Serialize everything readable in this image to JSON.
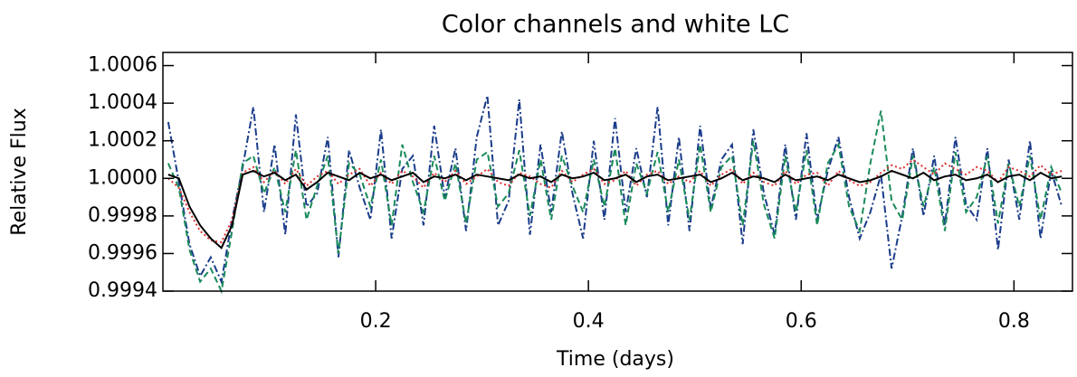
{
  "chart_data": {
    "type": "line",
    "title": "Color channels and white LC",
    "x_label": "Time (days)",
    "y_label": "Relative Flux",
    "xlim": [
      0,
      0.855
    ],
    "ylim": [
      0.9994,
      1.00067
    ],
    "xticks": [
      0.2,
      0.4,
      0.6,
      0.8
    ],
    "yticks": [
      0.9994,
      0.9996,
      0.9998,
      {
        "value": 1.0,
        "label": "1.0000"
      },
      1.0002,
      1.0004,
      1.0006
    ],
    "x": [
      0.005,
      0.015,
      0.025,
      0.035,
      0.045,
      0.055,
      0.065,
      0.075,
      0.085,
      0.095,
      0.105,
      0.115,
      0.125,
      0.135,
      0.145,
      0.155,
      0.165,
      0.175,
      0.185,
      0.195,
      0.205,
      0.215,
      0.225,
      0.235,
      0.245,
      0.255,
      0.265,
      0.275,
      0.285,
      0.295,
      0.305,
      0.315,
      0.325,
      0.335,
      0.345,
      0.355,
      0.365,
      0.375,
      0.385,
      0.395,
      0.405,
      0.415,
      0.425,
      0.435,
      0.445,
      0.455,
      0.465,
      0.475,
      0.485,
      0.495,
      0.505,
      0.515,
      0.525,
      0.535,
      0.545,
      0.555,
      0.565,
      0.575,
      0.585,
      0.595,
      0.605,
      0.615,
      0.625,
      0.635,
      0.645,
      0.655,
      0.665,
      0.675,
      0.685,
      0.695,
      0.705,
      0.715,
      0.725,
      0.735,
      0.745,
      0.755,
      0.765,
      0.775,
      0.785,
      0.795,
      0.805,
      0.815,
      0.825,
      0.835,
      0.845
    ],
    "series": [
      {
        "color": "#1a3c8a",
        "style": "dashdot",
        "values": [
          1.0003,
          0.99998,
          0.99965,
          0.99948,
          0.99958,
          0.99945,
          0.99978,
          1.00006,
          1.00038,
          0.99982,
          1.00018,
          0.9997,
          1.00034,
          0.99985,
          0.99992,
          1.00022,
          0.99958,
          1.00015,
          0.99995,
          0.99978,
          1.00026,
          0.99968,
          1.00005,
          1.00012,
          0.99975,
          1.00028,
          0.9999,
          1.00016,
          0.99972,
          1.00022,
          1.00044,
          0.99975,
          0.99988,
          1.00042,
          0.9997,
          1.00018,
          0.99982,
          1.00025,
          0.99992,
          0.99968,
          1.0002,
          0.99978,
          1.00032,
          0.99982,
          1.00016,
          0.9999,
          1.00038,
          0.99975,
          1.00022,
          0.99972,
          1.00028,
          0.99984,
          1.0001,
          1.00018,
          0.99965,
          1.00026,
          0.99992,
          0.9997,
          1.00018,
          0.99978,
          1.00024,
          0.99978,
          1.00004,
          1.00022,
          0.9999,
          0.99968,
          0.99982,
          1.00002,
          0.99952,
          0.9998,
          1.00016,
          0.9998,
          1.00012,
          0.99975,
          1.00022,
          0.99986,
          0.99978,
          1.00016,
          0.99962,
          1.0001,
          0.99978,
          1.0002,
          0.99968,
          1.00004,
          0.99985
        ]
      },
      {
        "color": "#1a8a5a",
        "style": "dashed",
        "values": [
          1.00008,
          0.99995,
          0.99962,
          0.99945,
          0.99952,
          0.9994,
          0.99972,
          1.00008,
          1.00012,
          0.99992,
          1.00006,
          0.99982,
          1.00015,
          0.99978,
          0.99996,
          1.00012,
          0.9996,
          1.00008,
          1.00002,
          0.99985,
          1.0001,
          0.99975,
          1.00018,
          0.99998,
          0.99982,
          1.00012,
          0.99988,
          1.00008,
          0.99976,
          1.0001,
          1.00014,
          0.99985,
          0.99992,
          1.00015,
          0.9998,
          1.0001,
          0.99978,
          1.00012,
          0.99996,
          0.99982,
          1.0001,
          0.99985,
          1.00016,
          0.99975,
          1.00008,
          0.99992,
          1.00014,
          0.99982,
          1.0001,
          0.99978,
          1.00018,
          0.99982,
          1.00006,
          1.00012,
          0.99975,
          1.0002,
          0.99986,
          0.99968,
          1.00012,
          0.99982,
          1.00015,
          0.99975,
          1.00008,
          1.00018,
          0.99985,
          0.99972,
          1.00008,
          1.00036,
          0.99988,
          0.99978,
          1.00012,
          0.99985,
          1.00006,
          0.99972,
          1.00014,
          0.99982,
          0.9999,
          1.00012,
          0.99976,
          1.00008,
          0.99985,
          1.00012,
          0.99978,
          1.00006,
          0.99992
        ]
      },
      {
        "color": "#e03030",
        "style": "dotted",
        "values": [
          1.0,
          0.99995,
          0.99982,
          0.99972,
          0.99967,
          0.99966,
          0.99978,
          1.00003,
          1.00006,
          0.99998,
          1.00004,
          0.99997,
          1.00005,
          0.99996,
          1.00001,
          1.00004,
          0.99997,
          1.00002,
          1.00005,
          0.99996,
          1.00003,
          0.99997,
          1.00004,
          1.00001,
          0.99995,
          1.00003,
          0.99998,
          1.00004,
          0.99997,
          1.00001,
          1.00005,
          0.99998,
          0.99996,
          1.00003,
          1.00001,
          0.99997,
          0.99995,
          1.00004,
          0.99998,
          1.00002,
          1.00005,
          0.99997,
          0.99999,
          1.00004,
          0.99996,
          1.00002,
          1.00004,
          0.99997,
          1.00001,
          0.99998,
          1.00004,
          0.99996,
          1.00002,
          1.00005,
          0.99997,
          1.00003,
          0.99998,
          0.99996,
          1.00004,
          0.99997,
          1.00002,
          1.00003,
          0.99996,
          1.00004,
          0.99999,
          0.99996,
          0.99998,
          1.00003,
          1.00007,
          1.00005,
          1.0001,
          1.00006,
          1.00002,
          1.00008,
          1.00005,
          1.00002,
          1.00006,
          1.00004,
          0.99998,
          1.00006,
          1.00004,
          1.00001,
          1.00007,
          1.00002,
          1.00004
        ]
      },
      {
        "color": "#000000",
        "style": "solid",
        "values": [
          1.00002,
          1.0,
          0.99985,
          0.99975,
          0.99968,
          0.99963,
          0.99975,
          1.00002,
          1.00004,
          1.00001,
          1.00003,
          0.99999,
          1.00002,
          0.99994,
          0.99998,
          1.00003,
          1.00001,
          0.99999,
          1.00003,
          1.0,
          1.00002,
          0.99999,
          1.00001,
          1.00003,
          0.99998,
          1.00001,
          1.0,
          1.00002,
          0.99999,
          1.00002,
          1.00001,
          1.0,
          0.99999,
          1.00002,
          1.0,
          1.00001,
          0.99998,
          1.00002,
          1.0,
          1.00001,
          1.00003,
          0.99999,
          1.0,
          1.00002,
          0.99998,
          1.00001,
          1.00002,
          0.99999,
          1.0,
          1.00001,
          1.00002,
          0.99998,
          1.0,
          1.00003,
          0.99999,
          1.00001,
          1.0,
          0.99998,
          1.00002,
          0.99999,
          1.0,
          1.00001,
          0.99999,
          1.00002,
          1.0,
          0.99998,
          0.99999,
          1.00001,
          1.00004,
          1.00002,
          1.0,
          1.00003,
          0.99999,
          1.00001,
          1.00002,
          0.99999,
          1.0,
          1.00002,
          0.99998,
          1.00001,
          1.00002,
          0.99999,
          1.00003,
          1.0,
          1.00001
        ]
      }
    ]
  }
}
